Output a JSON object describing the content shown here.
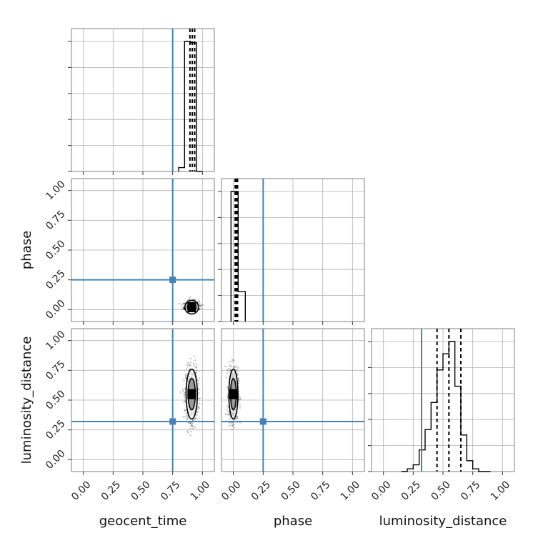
{
  "chart_data": {
    "type": "corner",
    "parameters": [
      "geocent_time",
      "phase",
      "luminosity_distance"
    ],
    "axis_labels": {
      "bottom": [
        "geocent_time",
        "phase",
        "luminosity_distance"
      ],
      "left": [
        "phase",
        "luminosity_distance"
      ]
    },
    "xlim": [
      -0.1,
      1.1
    ],
    "ylim": [
      -0.1,
      1.1
    ],
    "ticks": [
      0.0,
      0.25,
      0.5,
      0.75,
      1.0
    ],
    "tick_labels": [
      "0.00",
      "0.25",
      "0.50",
      "0.75",
      "1.00"
    ],
    "grid": true,
    "colors": {
      "truth": "#4682b4",
      "hist": "#000000",
      "grid": "#b0b0b0"
    },
    "truth_values": {
      "geocent_time": 0.75,
      "phase": 0.25,
      "luminosity_distance": 0.32
    },
    "histograms": [
      {
        "param": "geocent_time",
        "edges": [
          0.8,
          0.85,
          0.9,
          0.95,
          1.0
        ],
        "values": [
          0.03,
          1.0,
          0.99,
          0.0
        ],
        "quantiles": [
          0.895,
          0.915,
          0.935
        ]
      },
      {
        "param": "phase",
        "edges": [
          -0.02,
          0.04,
          0.1
        ],
        "values": [
          1.0,
          0.23
        ],
        "quantiles": [
          0.015,
          0.025,
          0.035
        ]
      },
      {
        "param": "luminosity_distance",
        "edges": [
          0.15,
          0.2,
          0.25,
          0.3,
          0.35,
          0.4,
          0.45,
          0.5,
          0.55,
          0.6,
          0.65,
          0.7,
          0.75,
          0.8,
          0.85,
          0.9
        ],
        "values": [
          0.0,
          0.02,
          0.05,
          0.16,
          0.31,
          0.51,
          0.75,
          0.87,
          0.96,
          0.63,
          0.27,
          0.08,
          0.02,
          0.0,
          0.0
        ],
        "quantiles": [
          0.45,
          0.55,
          0.65
        ]
      }
    ],
    "scatter_2d": [
      {
        "x": "geocent_time",
        "y": "phase",
        "center": [
          0.91,
          0.02
        ],
        "spread": [
          0.03,
          0.03
        ]
      },
      {
        "x": "geocent_time",
        "y": "luminosity_distance",
        "center": [
          0.91,
          0.55
        ],
        "spread": [
          0.025,
          0.11
        ]
      },
      {
        "x": "phase",
        "y": "luminosity_distance",
        "center": [
          0.0,
          0.55
        ],
        "spread": [
          0.02,
          0.11
        ]
      }
    ]
  }
}
